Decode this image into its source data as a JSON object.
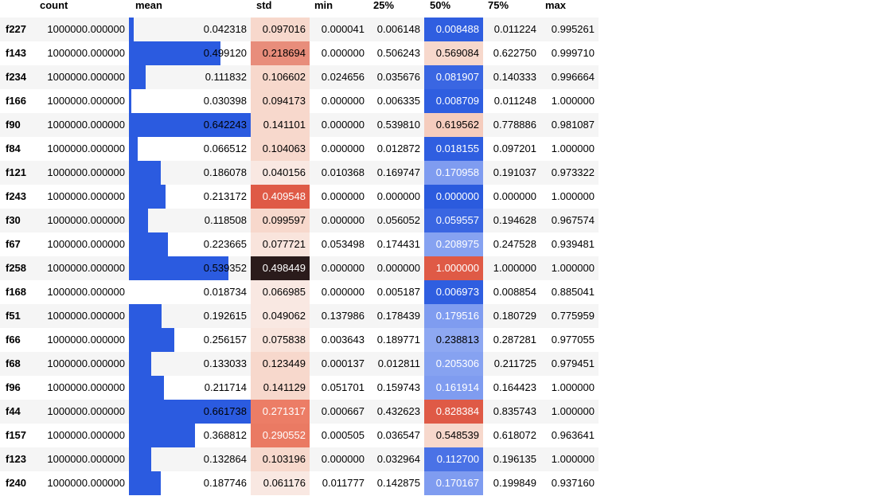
{
  "header": {
    "index": "",
    "columns": [
      "count",
      "mean",
      "std",
      "min",
      "25%",
      "50%",
      "75%",
      "max"
    ]
  },
  "rows": [
    {
      "name": "f227",
      "count": "1000000.000000",
      "mean": "0.042318",
      "std": "0.097016",
      "min": "0.000041",
      "p25": "0.006148",
      "p50": "0.008488",
      "p75": "0.011224",
      "max": "0.995261",
      "mean_fill": 0.04,
      "std_color": "#f7d8cc",
      "std_text": "#000000",
      "p50_color": "#2f5ee0",
      "p50_text": "#ffffff"
    },
    {
      "name": "f143",
      "count": "1000000.000000",
      "mean": "0.499120",
      "std": "0.218694",
      "min": "0.000000",
      "p25": "0.506243",
      "p50": "0.569084",
      "p75": "0.622750",
      "max": "0.999710",
      "mean_fill": 0.75,
      "std_color": "#e88d7b",
      "std_text": "#000000",
      "p50_color": "#f7d8cc",
      "p50_text": "#000000"
    },
    {
      "name": "f234",
      "count": "1000000.000000",
      "mean": "0.111832",
      "std": "0.106602",
      "min": "0.024656",
      "p25": "0.035676",
      "p50": "0.081907",
      "p75": "0.140333",
      "max": "0.996664",
      "mean_fill": 0.14,
      "std_color": "#f7d8cc",
      "std_text": "#000000",
      "p50_color": "#3a66e2",
      "p50_text": "#ffffff"
    },
    {
      "name": "f166",
      "count": "1000000.000000",
      "mean": "0.030398",
      "std": "0.094173",
      "min": "0.000000",
      "p25": "0.006335",
      "p50": "0.008709",
      "p75": "0.011248",
      "max": "1.000000",
      "mean_fill": 0.02,
      "std_color": "#f7d8cc",
      "std_text": "#000000",
      "p50_color": "#2f5ee0",
      "p50_text": "#ffffff"
    },
    {
      "name": "f90",
      "count": "1000000.000000",
      "mean": "0.642243",
      "std": "0.141101",
      "min": "0.000000",
      "p25": "0.539810",
      "p50": "0.619562",
      "p75": "0.778886",
      "max": "0.981087",
      "mean_fill": 1.0,
      "std_color": "#f7d8cc",
      "std_text": "#000000",
      "p50_color": "#f5ccbd",
      "p50_text": "#000000"
    },
    {
      "name": "f84",
      "count": "1000000.000000",
      "mean": "0.066512",
      "std": "0.104063",
      "min": "0.000000",
      "p25": "0.012872",
      "p50": "0.018155",
      "p75": "0.097201",
      "max": "1.000000",
      "mean_fill": 0.07,
      "std_color": "#f7d8cc",
      "std_text": "#000000",
      "p50_color": "#2f5ee0",
      "p50_text": "#ffffff"
    },
    {
      "name": "f121",
      "count": "1000000.000000",
      "mean": "0.186078",
      "std": "0.040156",
      "min": "0.010368",
      "p25": "0.169747",
      "p50": "0.170958",
      "p75": "0.191037",
      "max": "0.973322",
      "mean_fill": 0.26,
      "std_color": "#f9e8e2",
      "std_text": "#000000",
      "p50_color": "#7f9cf0",
      "p50_text": "#ffffff"
    },
    {
      "name": "f243",
      "count": "1000000.000000",
      "mean": "0.213172",
      "std": "0.409548",
      "min": "0.000000",
      "p25": "0.000000",
      "p50": "0.000000",
      "p75": "0.000000",
      "max": "1.000000",
      "mean_fill": 0.3,
      "std_color": "#df5a46",
      "std_text": "#ffffff",
      "p50_color": "#2b5bde",
      "p50_text": "#ffffff"
    },
    {
      "name": "f30",
      "count": "1000000.000000",
      "mean": "0.118508",
      "std": "0.099597",
      "min": "0.000000",
      "p25": "0.056052",
      "p50": "0.059557",
      "p75": "0.194628",
      "max": "0.967574",
      "mean_fill": 0.16,
      "std_color": "#f7d8cc",
      "std_text": "#000000",
      "p50_color": "#3a66e2",
      "p50_text": "#ffffff"
    },
    {
      "name": "f67",
      "count": "1000000.000000",
      "mean": "0.223665",
      "std": "0.077721",
      "min": "0.053498",
      "p25": "0.174431",
      "p50": "0.208975",
      "p75": "0.247528",
      "max": "0.939481",
      "mean_fill": 0.32,
      "std_color": "#f9e4dc",
      "std_text": "#000000",
      "p50_color": "#86a2f1",
      "p50_text": "#ffffff"
    },
    {
      "name": "f258",
      "count": "1000000.000000",
      "mean": "0.539352",
      "std": "0.498449",
      "min": "0.000000",
      "p25": "0.000000",
      "p50": "1.000000",
      "p75": "1.000000",
      "max": "1.000000",
      "mean_fill": 0.82,
      "std_color": "#2a1b1b",
      "std_text": "#ffffff",
      "p50_color": "#df5a46",
      "p50_text": "#ffffff"
    },
    {
      "name": "f168",
      "count": "1000000.000000",
      "mean": "0.018734",
      "std": "0.066985",
      "min": "0.000000",
      "p25": "0.005187",
      "p50": "0.006973",
      "p75": "0.008854",
      "max": "0.885041",
      "mean_fill": 0.0,
      "std_color": "#f9e8e2",
      "std_text": "#000000",
      "p50_color": "#2f5ee0",
      "p50_text": "#ffffff"
    },
    {
      "name": "f51",
      "count": "1000000.000000",
      "mean": "0.192615",
      "std": "0.049062",
      "min": "0.137986",
      "p25": "0.178439",
      "p50": "0.179516",
      "p75": "0.180729",
      "max": "0.775959",
      "mean_fill": 0.27,
      "std_color": "#f9e8e2",
      "std_text": "#000000",
      "p50_color": "#7f9cf0",
      "p50_text": "#ffffff"
    },
    {
      "name": "f66",
      "count": "1000000.000000",
      "mean": "0.256157",
      "std": "0.075838",
      "min": "0.003643",
      "p25": "0.189771",
      "p50": "0.238813",
      "p75": "0.287281",
      "max": "0.977055",
      "mean_fill": 0.37,
      "std_color": "#f9e4dc",
      "std_text": "#000000",
      "p50_color": "#8ea8f2",
      "p50_text": "#000000"
    },
    {
      "name": "f68",
      "count": "1000000.000000",
      "mean": "0.133033",
      "std": "0.123449",
      "min": "0.000137",
      "p25": "0.012811",
      "p50": "0.205306",
      "p75": "0.211725",
      "max": "0.979451",
      "mean_fill": 0.18,
      "std_color": "#f7d8cc",
      "std_text": "#000000",
      "p50_color": "#86a2f1",
      "p50_text": "#ffffff"
    },
    {
      "name": "f96",
      "count": "1000000.000000",
      "mean": "0.211714",
      "std": "0.141129",
      "min": "0.051701",
      "p25": "0.159743",
      "p50": "0.161914",
      "p75": "0.164423",
      "max": "1.000000",
      "mean_fill": 0.29,
      "std_color": "#f7d8cc",
      "std_text": "#000000",
      "p50_color": "#7f9cf0",
      "p50_text": "#ffffff"
    },
    {
      "name": "f44",
      "count": "1000000.000000",
      "mean": "0.661738",
      "std": "0.271317",
      "min": "0.000667",
      "p25": "0.432623",
      "p50": "0.828384",
      "p75": "0.835743",
      "max": "1.000000",
      "mean_fill": 1.0,
      "std_color": "#ec7d66",
      "std_text": "#ffffff",
      "p50_color": "#df5a46",
      "p50_text": "#ffffff"
    },
    {
      "name": "f157",
      "count": "1000000.000000",
      "mean": "0.368812",
      "std": "0.290552",
      "min": "0.000505",
      "p25": "0.036547",
      "p50": "0.548539",
      "p75": "0.618072",
      "max": "0.963641",
      "mean_fill": 0.54,
      "std_color": "#ea7a63",
      "std_text": "#ffffff",
      "p50_color": "#f7d8cc",
      "p50_text": "#000000"
    },
    {
      "name": "f123",
      "count": "1000000.000000",
      "mean": "0.132864",
      "std": "0.103196",
      "min": "0.000000",
      "p25": "0.032964",
      "p50": "0.112700",
      "p75": "0.196135",
      "max": "1.000000",
      "mean_fill": 0.18,
      "std_color": "#f7d8cc",
      "std_text": "#000000",
      "p50_color": "#4a72e6",
      "p50_text": "#ffffff"
    },
    {
      "name": "f240",
      "count": "1000000.000000",
      "mean": "0.187746",
      "std": "0.061176",
      "min": "0.011777",
      "p25": "0.142875",
      "p50": "0.170167",
      "p75": "0.199849",
      "max": "0.937160",
      "mean_fill": 0.26,
      "std_color": "#f9e8e2",
      "std_text": "#000000",
      "p50_color": "#7f9cf0",
      "p50_text": "#ffffff"
    }
  ]
}
